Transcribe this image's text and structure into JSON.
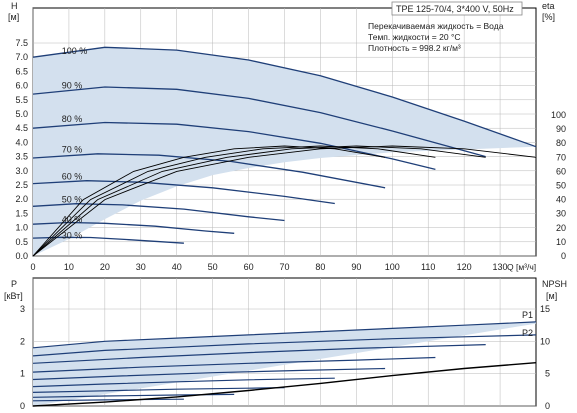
{
  "colors": {
    "fill": "#d3e0ee",
    "curve": "#1f3f78",
    "eta_curve": "#000000",
    "grid": "#b8b8b8",
    "axis": "#000000"
  },
  "chart_data": [
    {
      "type": "line",
      "title": "TPE 125-70/4, 3*400 V, 50Hz",
      "info": [
        "Перекачиваемая жидкость = Вода",
        "Темп. жидкости = 20 °C",
        "Плотность = 998.2 кг/м³"
      ],
      "xlabel": "Q [м³/ч]",
      "ylabel_symbol": "H",
      "ylabel_unit": "[м]",
      "y2label_symbol": "eta",
      "y2label_unit": "[%]",
      "xlim": [
        0,
        140
      ],
      "ylim": [
        0,
        8.0
      ],
      "y2lim": [
        0,
        110
      ],
      "x_ticks": [
        0,
        10,
        20,
        30,
        40,
        50,
        60,
        70,
        80,
        90,
        100,
        110,
        120,
        130
      ],
      "y_ticks": [
        "0.0",
        "0.5",
        "1.0",
        "1.5",
        "2.0",
        "2.5",
        "3.0",
        "3.5",
        "4.0",
        "4.5",
        "5.0",
        "5.5",
        "6.0",
        "6.5",
        "7.0",
        "7.5"
      ],
      "y2_ticks": [
        0,
        10,
        20,
        30,
        40,
        50,
        60,
        70,
        80,
        90,
        100
      ],
      "grid": true,
      "speed_labels": [
        {
          "text": "100 %",
          "x": 8,
          "y": 7.12
        },
        {
          "text": "90 %",
          "x": 8,
          "y": 5.9
        },
        {
          "text": "80 %",
          "x": 8,
          "y": 4.72
        },
        {
          "text": "70 %",
          "x": 8,
          "y": 3.65
        },
        {
          "text": "60 %",
          "x": 8,
          "y": 2.7
        },
        {
          "text": "50 %",
          "x": 8,
          "y": 1.88
        },
        {
          "text": "40 %",
          "x": 8,
          "y": 1.18
        },
        {
          "text": "30 %",
          "x": 8,
          "y": 0.62
        }
      ],
      "area": {
        "top": [
          [
            0,
            7.0
          ],
          [
            20,
            7.35
          ],
          [
            40,
            7.25
          ],
          [
            60,
            6.9
          ],
          [
            80,
            6.35
          ],
          [
            100,
            5.6
          ],
          [
            120,
            4.75
          ],
          [
            140,
            3.85
          ]
        ],
        "bottom": [
          [
            0,
            0.0
          ],
          [
            10,
            0.6
          ],
          [
            20,
            1.3
          ],
          [
            30,
            1.95
          ],
          [
            40,
            2.45
          ],
          [
            50,
            2.85
          ],
          [
            60,
            3.1
          ],
          [
            70,
            3.3
          ],
          [
            80,
            3.45
          ],
          [
            100,
            3.65
          ],
          [
            120,
            3.75
          ],
          [
            140,
            3.85
          ]
        ]
      },
      "series": [
        {
          "label": "100 %",
          "points": [
            [
              0,
              7.0
            ],
            [
              20,
              7.35
            ],
            [
              40,
              7.25
            ],
            [
              60,
              6.9
            ],
            [
              80,
              6.35
            ],
            [
              100,
              5.6
            ],
            [
              120,
              4.75
            ],
            [
              140,
              3.85
            ]
          ]
        },
        {
          "label": "90 %",
          "points": [
            [
              0,
              5.7
            ],
            [
              20,
              5.95
            ],
            [
              40,
              5.87
            ],
            [
              60,
              5.55
            ],
            [
              80,
              5.05
            ],
            [
              100,
              4.4
            ],
            [
              126,
              3.5
            ]
          ]
        },
        {
          "label": "80 %",
          "points": [
            [
              0,
              4.5
            ],
            [
              20,
              4.7
            ],
            [
              40,
              4.64
            ],
            [
              60,
              4.38
            ],
            [
              80,
              3.97
            ],
            [
              100,
              3.42
            ],
            [
              112,
              3.05
            ]
          ]
        },
        {
          "label": "70 %",
          "points": [
            [
              0,
              3.45
            ],
            [
              18,
              3.6
            ],
            [
              35,
              3.55
            ],
            [
              55,
              3.33
            ],
            [
              75,
              2.95
            ],
            [
              98,
              2.4
            ]
          ]
        },
        {
          "label": "60 %",
          "points": [
            [
              0,
              2.55
            ],
            [
              15,
              2.65
            ],
            [
              30,
              2.6
            ],
            [
              50,
              2.4
            ],
            [
              70,
              2.1
            ],
            [
              84,
              1.85
            ]
          ]
        },
        {
          "label": "50 %",
          "points": [
            [
              0,
              1.75
            ],
            [
              12,
              1.84
            ],
            [
              25,
              1.8
            ],
            [
              42,
              1.65
            ],
            [
              60,
              1.38
            ],
            [
              70,
              1.25
            ]
          ]
        },
        {
          "label": "40 %",
          "points": [
            [
              0,
              1.12
            ],
            [
              10,
              1.18
            ],
            [
              20,
              1.15
            ],
            [
              34,
              1.05
            ],
            [
              48,
              0.88
            ],
            [
              56,
              0.8
            ]
          ]
        },
        {
          "label": "30 %",
          "points": [
            [
              0,
              0.63
            ],
            [
              8,
              0.66
            ],
            [
              16,
              0.65
            ],
            [
              26,
              0.58
            ],
            [
              36,
              0.5
            ],
            [
              42,
              0.45
            ]
          ]
        }
      ],
      "eta_series": [
        {
          "name": "eta 100 %",
          "points": [
            [
              0,
              0
            ],
            [
              20,
              40
            ],
            [
              40,
              60
            ],
            [
              60,
              70
            ],
            [
              80,
              76
            ],
            [
              100,
              78
            ],
            [
              120,
              76
            ],
            [
              140,
              70
            ]
          ]
        },
        {
          "name": "eta 90 %",
          "points": [
            [
              0,
              0
            ],
            [
              18,
              40
            ],
            [
              36,
              60
            ],
            [
              54,
              70
            ],
            [
              72,
              76
            ],
            [
              90,
              78
            ],
            [
              108,
              76
            ],
            [
              126,
              70
            ]
          ]
        },
        {
          "name": "eta 80 %",
          "points": [
            [
              0,
              0
            ],
            [
              16,
              40
            ],
            [
              32,
              60
            ],
            [
              48,
              70
            ],
            [
              64,
              76
            ],
            [
              80,
              78
            ],
            [
              96,
              76
            ],
            [
              112,
              70
            ]
          ]
        },
        {
          "name": "eta 70 %",
          "points": [
            [
              0,
              0
            ],
            [
              14,
              40
            ],
            [
              28,
              60
            ],
            [
              42,
              70
            ],
            [
              56,
              76
            ],
            [
              70,
              78
            ],
            [
              84,
              76
            ],
            [
              98,
              70
            ]
          ]
        }
      ]
    },
    {
      "type": "line",
      "ylabel_symbol": "P",
      "ylabel_unit": "[кВт]",
      "y2label_symbol": "NPSH",
      "y2label_unit": "[м]",
      "xlim": [
        0,
        140
      ],
      "ylim": [
        0,
        3
      ],
      "y2lim": [
        0,
        15
      ],
      "y_ticks": [
        0,
        1,
        2,
        3
      ],
      "y2_ticks": [
        0,
        5,
        10,
        15
      ],
      "grid": true,
      "area": {
        "top": [
          [
            0,
            1.8
          ],
          [
            20,
            2.0
          ],
          [
            40,
            2.1
          ],
          [
            60,
            2.2
          ],
          [
            80,
            2.3
          ],
          [
            100,
            2.4
          ],
          [
            120,
            2.5
          ],
          [
            140,
            2.6
          ]
        ],
        "bottom": [
          [
            0,
            0.0
          ],
          [
            140,
            2.55
          ]
        ]
      },
      "series": [
        {
          "label": "P1",
          "points": [
            [
              0,
              1.8
            ],
            [
              20,
              2.0
            ],
            [
              40,
              2.1
            ],
            [
              60,
              2.2
            ],
            [
              80,
              2.3
            ],
            [
              100,
              2.4
            ],
            [
              120,
              2.5
            ],
            [
              140,
              2.6
            ]
          ]
        },
        {
          "label": "P2",
          "points": [
            [
              0,
              1.55
            ],
            [
              20,
              1.72
            ],
            [
              40,
              1.82
            ],
            [
              60,
              1.92
            ],
            [
              80,
              2.0
            ],
            [
              100,
              2.08
            ],
            [
              120,
              2.14
            ],
            [
              140,
              2.2
            ]
          ]
        },
        {
          "name": "P 90 %",
          "points": [
            [
              0,
              1.32
            ],
            [
              30,
              1.5
            ],
            [
              60,
              1.65
            ],
            [
              90,
              1.78
            ],
            [
              126,
              1.9
            ]
          ]
        },
        {
          "name": "P 80 %",
          "points": [
            [
              0,
              1.05
            ],
            [
              30,
              1.2
            ],
            [
              60,
              1.32
            ],
            [
              90,
              1.42
            ],
            [
              112,
              1.5
            ]
          ]
        },
        {
          "name": "P 70 %",
          "points": [
            [
              0,
              0.82
            ],
            [
              25,
              0.93
            ],
            [
              50,
              1.03
            ],
            [
              75,
              1.1
            ],
            [
              98,
              1.16
            ]
          ]
        },
        {
          "name": "P 60 %",
          "points": [
            [
              0,
              0.6
            ],
            [
              20,
              0.68
            ],
            [
              40,
              0.75
            ],
            [
              60,
              0.81
            ],
            [
              84,
              0.86
            ]
          ]
        },
        {
          "name": "P 50 %",
          "points": [
            [
              0,
              0.42
            ],
            [
              20,
              0.47
            ],
            [
              40,
              0.52
            ],
            [
              60,
              0.55
            ],
            [
              70,
              0.57
            ]
          ]
        },
        {
          "name": "P 40 %",
          "points": [
            [
              0,
              0.27
            ],
            [
              20,
              0.31
            ],
            [
              40,
              0.34
            ],
            [
              56,
              0.36
            ]
          ]
        },
        {
          "name": "P 30 %",
          "points": [
            [
              0,
              0.16
            ],
            [
              20,
              0.19
            ],
            [
              42,
              0.21
            ]
          ]
        }
      ],
      "npsh_series": [
        {
          "name": "NPSH",
          "points": [
            [
              0,
              0.0
            ],
            [
              20,
              0.6
            ],
            [
              40,
              1.4
            ],
            [
              60,
              2.4
            ],
            [
              80,
              3.5
            ],
            [
              100,
              4.7
            ],
            [
              120,
              5.8
            ],
            [
              140,
              6.7
            ]
          ]
        }
      ]
    }
  ]
}
